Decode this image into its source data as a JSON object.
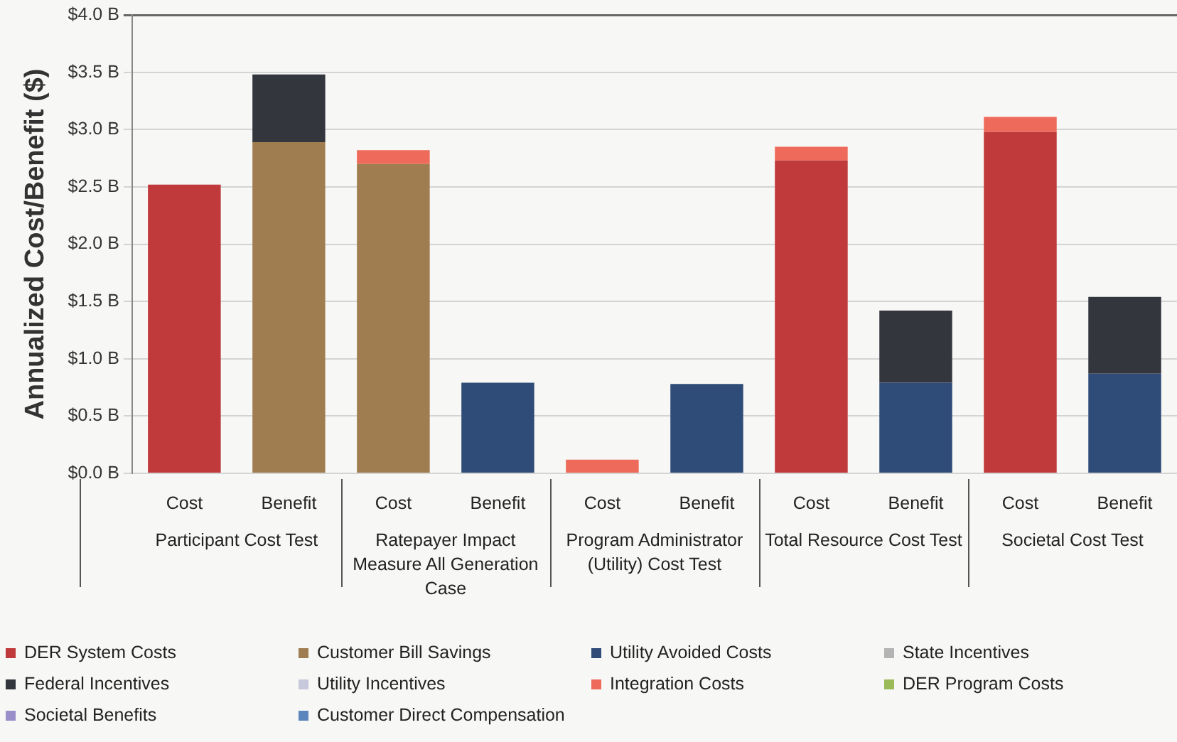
{
  "chart_data": {
    "type": "bar",
    "stacked": true,
    "ylabel": "Annualized Cost/Benefit ($)",
    "categories": [
      "Cost",
      "Benefit",
      "Cost",
      "Benefit",
      "Cost",
      "Benefit",
      "Cost",
      "Benefit",
      "Cost",
      "Benefit"
    ],
    "annotations": [
      "Participant Cost Test",
      "Ratepayer Impact Measure All Generation Case",
      "Program Administrator (Utility) Cost Test",
      "Total Resource Cost Test",
      "Societal Cost Test"
    ],
    "ylim": [
      0,
      4
    ],
    "yticks": [
      {
        "value": 0,
        "label": "$0.0 B"
      },
      {
        "value": 0.5,
        "label": "$0.5 B"
      },
      {
        "value": 1,
        "label": "$1.0 B"
      },
      {
        "value": 1.5,
        "label": "$1.5 B"
      },
      {
        "value": 2,
        "label": "$2.0 B"
      },
      {
        "value": 2.5,
        "label": "$2.5 B"
      },
      {
        "value": 3,
        "label": "$3.0 B"
      },
      {
        "value": 3.5,
        "label": "$3.5 B"
      },
      {
        "value": 4,
        "label": "$4.0 B"
      }
    ],
    "grid": "y",
    "legend": "bottom",
    "series": [
      {
        "name": "DER System Costs",
        "color": "#c0393b",
        "values": [
          2.52,
          null,
          null,
          null,
          null,
          null,
          2.73,
          null,
          2.98,
          null
        ]
      },
      {
        "name": "Customer Bill Savings",
        "color": "#a07d50",
        "values": [
          null,
          2.89,
          2.7,
          null,
          null,
          null,
          null,
          null,
          null,
          null
        ]
      },
      {
        "name": "Utility Avoided Costs",
        "color": "#2f4b78",
        "values": [
          null,
          null,
          null,
          0.79,
          null,
          0.78,
          null,
          0.79,
          null,
          0.87
        ]
      },
      {
        "name": "State Incentives",
        "color": "#b4b4b4",
        "values": [
          null,
          null,
          null,
          null,
          null,
          null,
          null,
          null,
          null,
          null
        ]
      },
      {
        "name": "Federal Incentives",
        "color": "#34363e",
        "values": [
          null,
          0.59,
          null,
          null,
          null,
          null,
          null,
          0.63,
          null,
          0.67
        ]
      },
      {
        "name": "Utility Incentives",
        "color": "#c8c8dc",
        "values": [
          null,
          null,
          null,
          null,
          null,
          null,
          null,
          null,
          null,
          null
        ]
      },
      {
        "name": "Integration Costs",
        "color": "#ee6a5a",
        "values": [
          null,
          null,
          0.12,
          null,
          0.12,
          null,
          0.12,
          null,
          0.13,
          null
        ]
      },
      {
        "name": "DER Program Costs",
        "color": "#9bbb59",
        "values": [
          null,
          null,
          null,
          null,
          null,
          null,
          null,
          null,
          null,
          null
        ]
      },
      {
        "name": "Societal Benefits",
        "color": "#9a8fc8",
        "values": [
          null,
          null,
          null,
          null,
          null,
          null,
          null,
          null,
          null,
          null
        ]
      },
      {
        "name": "Customer Direct Compensation",
        "color": "#5b86bd",
        "values": [
          null,
          null,
          null,
          null,
          null,
          null,
          null,
          null,
          null,
          null
        ]
      }
    ]
  }
}
